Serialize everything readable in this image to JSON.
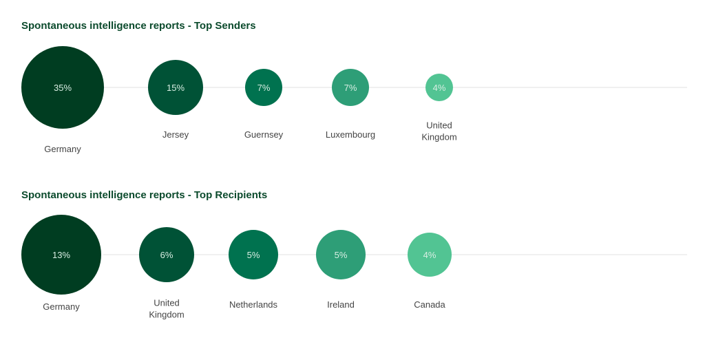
{
  "chart_data": [
    {
      "type": "bubble",
      "title": "Spontaneous intelligence reports - Top Senders",
      "categories": [
        "Germany",
        "Jersey",
        "Guernsey",
        "Luxembourg",
        "United Kingdom"
      ],
      "values": [
        35,
        15,
        7,
        7,
        4
      ],
      "labels": [
        "35%",
        "15%",
        "7%",
        "7%",
        "4%"
      ],
      "unit": "%"
    },
    {
      "type": "bubble",
      "title": "Spontaneous intelligence reports - Top Recipients",
      "categories": [
        "Germany",
        "United Kingdom",
        "Netherlands",
        "Ireland",
        "Canada"
      ],
      "values": [
        13,
        6,
        5,
        5,
        4
      ],
      "labels": [
        "13%",
        "6%",
        "5%",
        "5%",
        "4%"
      ],
      "unit": "%"
    }
  ],
  "colors": [
    "#003d21",
    "#005236",
    "#00724f",
    "#2e9e77",
    "#52c493"
  ]
}
